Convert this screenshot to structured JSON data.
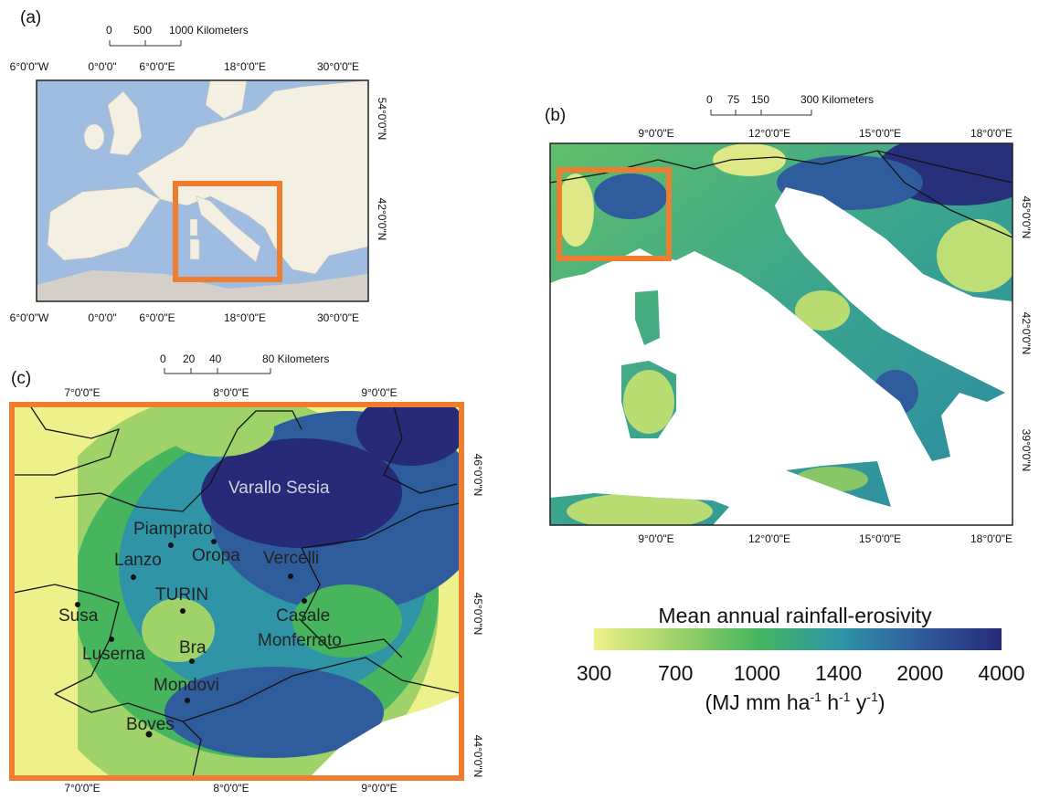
{
  "panel_a": {
    "label": "(a)",
    "scale_labels": [
      "0",
      "500",
      "1000 Kilometers"
    ],
    "top_labels": [
      "6°0'0\"W",
      "0°0'0\"",
      "6°0'0\"E",
      "18°0'0\"E",
      "30°0'0\"E"
    ],
    "bottom_labels": [
      "6°0'0\"W",
      "0°0'0\"",
      "6°0'0\"E",
      "18°0'0\"E",
      "30°0'0\"E"
    ],
    "right_labels": [
      "54°0'0\"N",
      "42°0'0\"N"
    ]
  },
  "panel_b": {
    "label": "(b)",
    "scale_labels": [
      "0",
      "75",
      "150",
      "300 Kilometers"
    ],
    "top_labels": [
      "9°0'0\"E",
      "12°0'0\"E",
      "15°0'0\"E",
      "18°0'0\"E"
    ],
    "bottom_labels": [
      "9°0'0\"E",
      "12°0'0\"E",
      "15°0'0\"E",
      "18°0'0\"E"
    ],
    "right_labels": [
      "45°0'0\"N",
      "42°0'0\"N",
      "39°0'0\"N"
    ]
  },
  "panel_c": {
    "label": "(c)",
    "scale_labels": [
      "0",
      "20",
      "40",
      "80 Kilometers"
    ],
    "top_labels": [
      "7°0'0\"E",
      "8°0'0\"E",
      "9°0'0\"E"
    ],
    "bottom_labels": [
      "7°0'0\"E",
      "8°0'0\"E",
      "9°0'0\"E"
    ],
    "right_labels": [
      "46°0'0\"N",
      "45°0'0\"N",
      "44°0'0\"N"
    ],
    "cities": [
      "Varallo Sesia",
      "Piamprato",
      "Lanzo",
      "Oropa",
      "Vercelli",
      "TURIN",
      "Susa",
      "Casale",
      "Monferrato",
      "Luserna",
      "Bra",
      "Mondovi",
      "Boves"
    ]
  },
  "legend": {
    "title": "Mean annual rainfall-erosivity",
    "ticks": [
      300,
      700,
      1000,
      1400,
      2000,
      4000
    ],
    "colors": [
      "#eef08a",
      "#9fd36a",
      "#46b55e",
      "#2f95a6",
      "#2f5c9c",
      "#262a78"
    ],
    "units": [
      "(MJ mm ha",
      "-1",
      " h",
      "-1",
      " y",
      "-1",
      ")"
    ]
  }
}
